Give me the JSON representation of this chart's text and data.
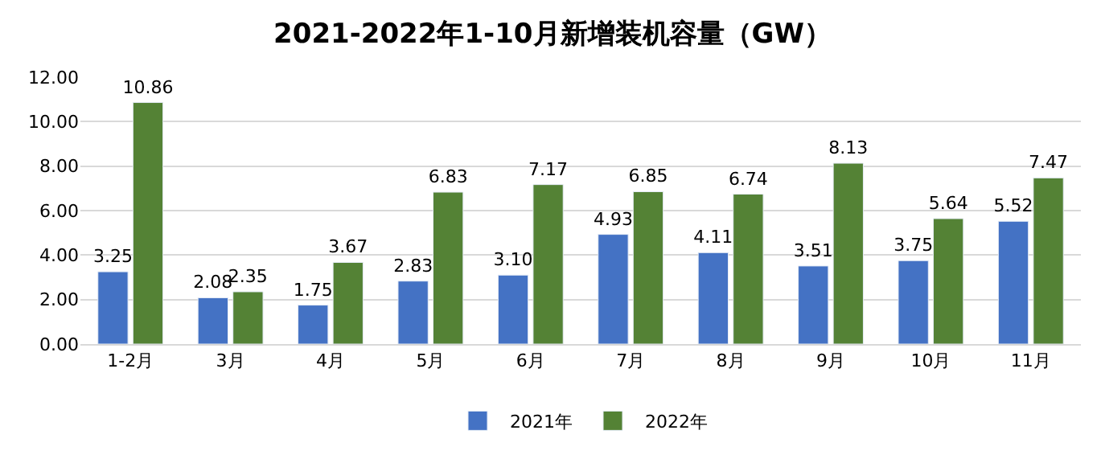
{
  "chart_data": {
    "type": "bar",
    "title": "2021-2022年1-10月新增装机容量（GW）",
    "categories": [
      "1-2月",
      "3月",
      "4月",
      "5月",
      "6月",
      "7月",
      "8月",
      "9月",
      "10月",
      "11月"
    ],
    "series": [
      {
        "name": "2021年",
        "color": "#4472c4",
        "values": [
          3.25,
          2.08,
          1.75,
          2.83,
          3.1,
          4.93,
          4.11,
          3.51,
          3.75,
          5.52
        ],
        "value_labels": [
          "3.25",
          "2.08",
          "1.75",
          "2.83",
          "3.10",
          "4.93",
          "4.11",
          "3.51",
          "3.75",
          "5.52"
        ]
      },
      {
        "name": "2022年",
        "color": "#548235",
        "values": [
          10.86,
          2.35,
          3.67,
          6.83,
          7.17,
          6.85,
          6.74,
          8.13,
          5.64,
          7.47
        ],
        "value_labels": [
          "10.86",
          "2.35",
          "3.67",
          "6.83",
          "7.17",
          "6.85",
          "6.74",
          "8.13",
          "5.64",
          "7.47"
        ]
      }
    ],
    "ylim": [
      0,
      12
    ],
    "yticks": [
      {
        "value": 0,
        "label": "0.00"
      },
      {
        "value": 2,
        "label": "2.00"
      },
      {
        "value": 4,
        "label": "4.00"
      },
      {
        "value": 6,
        "label": "6.00"
      },
      {
        "value": 8,
        "label": "8.00"
      },
      {
        "value": 10,
        "label": "10.00"
      },
      {
        "value": 12,
        "label": "12.00"
      }
    ],
    "grid": "y",
    "legend": "bottom"
  }
}
